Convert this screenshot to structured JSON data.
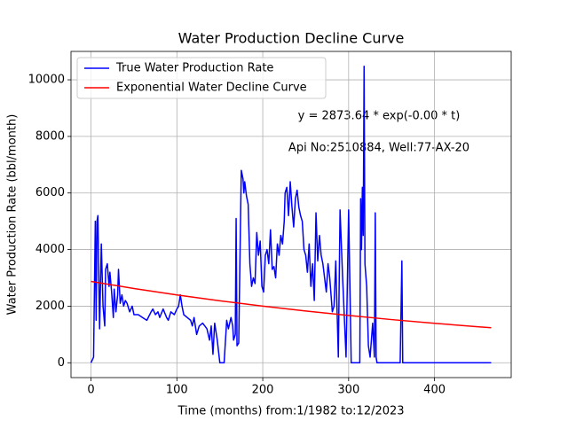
{
  "chart_data": {
    "type": "line",
    "title": "Water Production Decline Curve",
    "xlabel": "Time (months) from:1/1982 to:12/2023",
    "ylabel": "Water Production Rate (bbl/month)",
    "annotations": [
      "y = 2873.64 * exp(-0.00 * t)",
      "Api No:2510884, Well:77-AX-20"
    ],
    "xlim": [
      -23.3,
      489.3
    ],
    "xticks": [
      0,
      100,
      200,
      300,
      400
    ],
    "ylim": [
      -524,
      11004
    ],
    "yticks": [
      0,
      2000,
      4000,
      6000,
      8000,
      10000
    ],
    "grid": true,
    "legend": "upper left",
    "series": [
      {
        "name": "True Water Production Rate",
        "color": "#0000ff",
        "x": [
          0,
          3,
          5,
          6,
          7,
          8,
          10,
          12,
          14,
          16,
          17,
          19,
          21,
          22,
          24,
          26,
          27,
          29,
          31,
          32,
          34,
          36,
          38,
          40,
          42,
          45,
          48,
          50,
          55,
          60,
          65,
          70,
          72,
          75,
          78,
          80,
          84,
          88,
          90,
          93,
          97,
          100,
          102,
          104,
          106,
          108,
          112,
          116,
          118,
          120,
          123,
          126,
          130,
          135,
          138,
          140,
          142,
          144,
          147,
          150,
          155,
          158,
          160,
          163,
          165,
          166,
          168,
          169,
          170,
          172,
          174,
          175,
          177,
          178,
          179,
          181,
          183,
          185,
          187,
          189,
          191,
          193,
          195,
          197,
          199,
          201,
          203,
          205,
          207,
          209,
          211,
          213,
          215,
          217,
          219,
          221,
          223,
          225,
          226,
          228,
          230,
          232,
          234,
          236,
          238,
          240,
          242,
          244,
          246,
          248,
          250,
          252,
          254,
          256,
          258,
          260,
          262,
          264,
          266,
          268,
          270,
          272,
          274,
          276,
          278,
          281,
          283,
          285,
          288,
          290,
          293,
          297,
          300,
          303,
          313,
          314,
          315,
          316,
          317,
          318,
          319,
          321,
          323,
          325,
          326,
          328,
          330,
          331,
          332,
          333,
          360,
          362,
          363,
          466
        ],
        "values": [
          0,
          200,
          5000,
          1500,
          5000,
          5200,
          1200,
          4200,
          2000,
          1300,
          3300,
          3500,
          2700,
          3200,
          2500,
          1600,
          2600,
          1800,
          2400,
          3300,
          2100,
          2400,
          2000,
          2200,
          2100,
          1800,
          2000,
          1700,
          1700,
          1600,
          1500,
          1800,
          1900,
          1700,
          1800,
          1600,
          1900,
          1600,
          1500,
          1800,
          1700,
          1900,
          2000,
          2400,
          2000,
          1700,
          1600,
          1500,
          1300,
          1600,
          1000,
          1300,
          1400,
          1200,
          800,
          1300,
          300,
          1400,
          800,
          0,
          0,
          1500,
          1200,
          1600,
          1300,
          800,
          1000,
          5100,
          600,
          700,
          4800,
          6800,
          6500,
          6000,
          6400,
          5900,
          5600,
          3500,
          2700,
          3000,
          2800,
          4600,
          3800,
          4300,
          2700,
          2500,
          3800,
          4000,
          3500,
          4700,
          3300,
          3400,
          3000,
          4200,
          3800,
          4500,
          4200,
          5000,
          6000,
          6200,
          5200,
          6400,
          5500,
          4800,
          5800,
          6100,
          5500,
          5200,
          5000,
          4000,
          3800,
          3200,
          4200,
          2700,
          3500,
          2200,
          5300,
          3600,
          4500,
          3800,
          3500,
          3000,
          2500,
          3500,
          3000,
          1800,
          2000,
          3600,
          200,
          5400,
          3000,
          200,
          5400,
          0,
          0,
          5800,
          4000,
          6200,
          4500,
          10480,
          3500,
          2700,
          600,
          200,
          600,
          1400,
          200,
          5300,
          200,
          0,
          0,
          3600,
          0,
          0
        ]
      },
      {
        "name": "Exponential Water Decline Curve",
        "color": "#ff0000",
        "x": [
          0,
          50,
          100,
          150,
          200,
          250,
          300,
          350,
          400,
          450,
          466
        ],
        "values": [
          2874,
          2625,
          2398,
          2191,
          2002,
          1829,
          1671,
          1526,
          1394,
          1274,
          1237
        ]
      }
    ]
  }
}
